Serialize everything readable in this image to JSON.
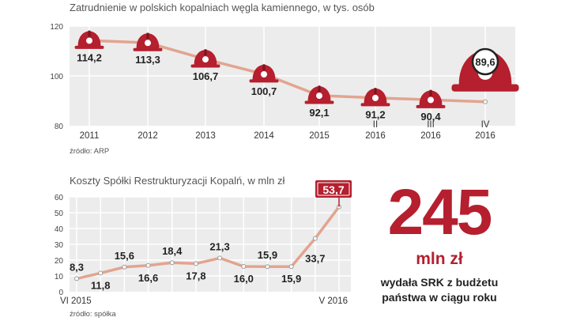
{
  "chart1": {
    "title": "Zatrudnienie w polskich kopalniach węgla kamiennego, w tys. osób",
    "source": "źródło: ARP",
    "colors": {
      "line": "#e2a48f",
      "point": "#999999",
      "helmet": "#b51f2e",
      "panel": "#ececec"
    }
  },
  "chart2": {
    "title": "Koszty Spółki Restrukturyzacji Kopalń, w mln zł",
    "source": "źródło: spółka",
    "colors": {
      "line": "#e2a48f",
      "point": "#999999",
      "highlight": "#b51f2e",
      "panel": "#ececec"
    }
  },
  "stat": {
    "number": "245",
    "unit": "mln zł",
    "description_line1": "wydała SRK z budżetu",
    "description_line2": "państwa w ciągu roku"
  },
  "chart_data": [
    {
      "type": "line",
      "title": "Zatrudnienie w polskich kopalniach węgla kamiennego, w tys. osób",
      "ylim": [
        80,
        120
      ],
      "yticks": [
        "80",
        "100",
        "120"
      ],
      "grid": true,
      "categories": [
        "2011",
        "2012",
        "2013",
        "2014",
        "2015",
        "II 2016",
        "III 2016",
        "IV 2016"
      ],
      "x_labels": [
        [
          "2011"
        ],
        [
          "2012"
        ],
        [
          "2013"
        ],
        [
          "2014"
        ],
        [
          "2015"
        ],
        [
          "II",
          "2016"
        ],
        [
          "III",
          "2016"
        ],
        [
          "IV",
          "2016"
        ]
      ],
      "values": [
        114.2,
        113.3,
        106.7,
        100.7,
        92.1,
        91.2,
        90.4,
        89.6
      ],
      "labels": [
        "114,2",
        "113,3",
        "106,7",
        "100,7",
        "92,1",
        "91,2",
        "90,4",
        "89,6"
      ],
      "marker": "helmet-icon"
    },
    {
      "type": "line",
      "title": "Koszty Spółki Restrukturyzacji Kopalń, w mln zł",
      "ylim": [
        0,
        60
      ],
      "yticks": [
        "0",
        "10",
        "20",
        "30",
        "40",
        "50",
        "60"
      ],
      "grid": true,
      "x_labels": [
        "VI 2015",
        "V 2016"
      ],
      "values": [
        8.3,
        11.8,
        15.6,
        16.6,
        18.4,
        17.8,
        21.3,
        16.0,
        15.9,
        15.9,
        33.7,
        53.7
      ],
      "labels": [
        "8,3",
        "11,8",
        "15,6",
        "16,6",
        "18,4",
        "17,8",
        "21,3",
        "16,0",
        "15,9",
        "15,9",
        "33,7",
        "53,7"
      ],
      "highlight_last": true
    }
  ]
}
